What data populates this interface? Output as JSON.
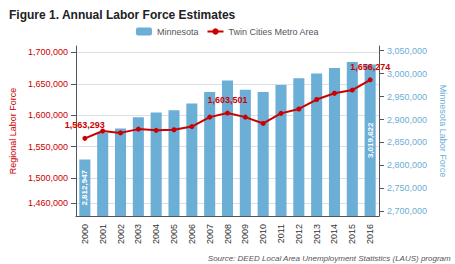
{
  "chart_data": {
    "type": "bar",
    "title": "Figure 1. Annual Labor Force Estimates",
    "ylabel": "Regional Labor Force",
    "y2label": "Minnesota Labor Force",
    "source": "Source: DEED Local Area Unemployment Statistics (LAUS) program",
    "categories": [
      "2000",
      "2001",
      "2002",
      "2003",
      "2004",
      "2005",
      "2006",
      "2007",
      "2008",
      "2009",
      "2010",
      "2011",
      "2012",
      "2013",
      "2014",
      "2015",
      "2016"
    ],
    "series": [
      {
        "name": "Minnesota",
        "type": "bar",
        "axis": "y2",
        "color": "#6baed6",
        "values": [
          2812947,
          2870996,
          2880447,
          2905000,
          2915000,
          2920000,
          2935000,
          2960000,
          2985000,
          2965000,
          2960000,
          2975000,
          2990000,
          3000000,
          3012000,
          3025000,
          3019622
        ]
      },
      {
        "name": "Twin Cities Metro Area",
        "type": "line",
        "color": "#cc0000",
        "marker": "circle",
        "values": [
          1563293,
          1575000,
          1572000,
          1578000,
          1576000,
          1577000,
          1582000,
          1597000,
          1603501,
          1597000,
          1587000,
          1603000,
          1610000,
          1625000,
          1635000,
          1640000,
          1656274
        ]
      }
    ],
    "ylim": [
      1440000,
      1710000
    ],
    "yticks": [
      {
        "value": 1460000,
        "label": "1,460,000"
      },
      {
        "value": 1500000,
        "label": "1,500,000"
      },
      {
        "value": 1550000,
        "label": "1,550,000"
      },
      {
        "value": 1600000,
        "label": "1,600,000"
      },
      {
        "value": 1650000,
        "label": "1,650,000"
      },
      {
        "value": 1700000,
        "label": "1,700,000"
      }
    ],
    "y2lim": [
      2690000,
      3060000
    ],
    "y2ticks": [
      {
        "value": 2700000,
        "label": "2,700,000"
      },
      {
        "value": 2750000,
        "label": "2,750,000"
      },
      {
        "value": 2800000,
        "label": "2,800,000"
      },
      {
        "value": 2850000,
        "label": "2,850,000"
      },
      {
        "value": 2900000,
        "label": "2,900,000"
      },
      {
        "value": 2950000,
        "label": "2,950,000"
      },
      {
        "value": 3000000,
        "label": "3,000,000"
      },
      {
        "value": 3050000,
        "label": "3,050,000"
      }
    ],
    "annotations": [
      {
        "text": "1,563,293",
        "x": "2000",
        "series": "Twin Cities Metro Area"
      },
      {
        "text": "1,603,501",
        "x": "2008",
        "series": "Twin Cities Metro Area"
      },
      {
        "text": "1,656,274",
        "x": "2016",
        "series": "Twin Cities Metro Area"
      },
      {
        "text": "2,812,947",
        "x": "2000",
        "series": "Minnesota"
      },
      {
        "text": "3,019,622",
        "x": "2016",
        "series": "Minnesota"
      }
    ],
    "grid": true,
    "legend": "top"
  }
}
